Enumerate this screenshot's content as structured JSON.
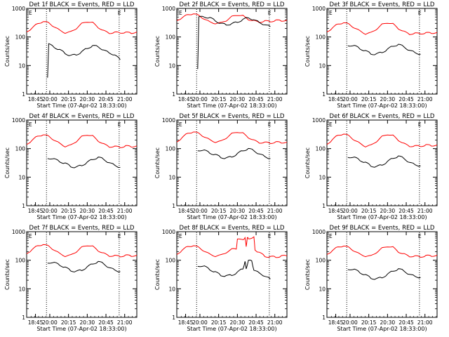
{
  "figure": {
    "background": "#ffffff",
    "events_color": "#000000",
    "lld_color": "#ff0000"
  },
  "chart_data": [
    {
      "type": "line",
      "title": "Det 1f BLACK = Events, RED = LLD",
      "xlabel": "Start Time (07-Apr-02 18:33:00)",
      "ylabel": "Counts/sec",
      "yscale": "log",
      "ylim": [
        1,
        1000
      ],
      "xticks": [
        "18:45",
        "20:00",
        "20:15",
        "20:30",
        "20:45",
        "21:00"
      ],
      "yticks": [
        "1",
        "10",
        "100",
        "1000"
      ],
      "markers": [
        {
          "label": "E",
          "position": "left"
        },
        {
          "label": "E",
          "position": "right"
        }
      ],
      "series": [
        {
          "name": "LLD",
          "color": "#ff0000",
          "x": [
            0,
            0.05,
            0.1,
            0.15,
            0.2,
            0.25,
            0.3,
            0.35,
            0.4,
            0.45,
            0.5,
            0.55,
            0.6,
            0.65,
            0.7,
            0.75,
            0.8,
            0.85,
            0.9,
            0.95,
            1
          ],
          "y": [
            150,
            210,
            290,
            350,
            310,
            230,
            170,
            140,
            150,
            200,
            290,
            350,
            310,
            220,
            160,
            140,
            140,
            145,
            140,
            140,
            150
          ]
        },
        {
          "name": "Events",
          "color": "#000000",
          "x": [
            0.19,
            0.2,
            0.25,
            0.3,
            0.35,
            0.4,
            0.45,
            0.5,
            0.55,
            0.6,
            0.65,
            0.7,
            0.75,
            0.8,
            0.85
          ],
          "y": [
            4,
            55,
            45,
            35,
            27,
            22,
            24,
            30,
            40,
            50,
            45,
            35,
            27,
            24,
            16
          ]
        }
      ]
    },
    {
      "type": "line",
      "title": "Det 2f BLACK = Events, RED = LLD",
      "xlabel": "Start Time (07-Apr-02 18:33:00)",
      "ylabel": "Counts/sec",
      "yscale": "log",
      "ylim": [
        1,
        1000
      ],
      "xticks": [
        "18:45",
        "20:00",
        "20:15",
        "20:30",
        "20:45",
        "21:00"
      ],
      "yticks": [
        "1",
        "10",
        "100",
        "1000"
      ],
      "markers": [
        {
          "label": "E",
          "position": "left"
        },
        {
          "label": "E",
          "position": "right"
        }
      ],
      "series": [
        {
          "name": "LLD",
          "color": "#ff0000",
          "x": [
            0,
            0.05,
            0.1,
            0.15,
            0.2,
            0.25,
            0.3,
            0.35,
            0.4,
            0.45,
            0.5,
            0.55,
            0.6,
            0.65,
            0.7,
            0.75,
            0.8,
            0.85,
            0.9,
            0.95,
            1
          ],
          "y": [
            380,
            480,
            600,
            660,
            560,
            430,
            330,
            300,
            310,
            380,
            510,
            600,
            540,
            420,
            360,
            340,
            350,
            360,
            370,
            380,
            390
          ]
        },
        {
          "name": "Events",
          "color": "#000000",
          "x": [
            0.19,
            0.2,
            0.25,
            0.3,
            0.35,
            0.4,
            0.45,
            0.5,
            0.55,
            0.6,
            0.65,
            0.7,
            0.75,
            0.8,
            0.85
          ],
          "y": [
            8,
            480,
            520,
            460,
            380,
            290,
            270,
            290,
            330,
            410,
            470,
            400,
            320,
            270,
            230
          ]
        }
      ]
    },
    {
      "type": "line",
      "title": "Det 3f BLACK = Events, RED = LLD",
      "xlabel": "Start Time (07-Apr-02 18:33:00)",
      "ylabel": "Counts/sec",
      "yscale": "log",
      "ylim": [
        1,
        1000
      ],
      "xticks": [
        "18:45",
        "20:00",
        "20:15",
        "20:30",
        "20:45",
        "21:00"
      ],
      "yticks": [
        "1",
        "10",
        "100",
        "1000"
      ],
      "markers": [
        {
          "label": "E",
          "position": "left"
        },
        {
          "label": "E",
          "position": "right"
        }
      ],
      "series": [
        {
          "name": "LLD",
          "color": "#ff0000",
          "x": [
            0,
            0.05,
            0.1,
            0.15,
            0.2,
            0.25,
            0.3,
            0.35,
            0.4,
            0.45,
            0.5,
            0.55,
            0.6,
            0.65,
            0.7,
            0.75,
            0.8,
            0.85,
            0.9,
            0.95,
            1
          ],
          "y": [
            150,
            210,
            280,
            320,
            280,
            210,
            160,
            130,
            140,
            190,
            270,
            320,
            280,
            200,
            150,
            130,
            130,
            135,
            135,
            140,
            145
          ]
        },
        {
          "name": "Events",
          "color": "#000000",
          "x": [
            0.19,
            0.25,
            0.3,
            0.35,
            0.4,
            0.45,
            0.5,
            0.55,
            0.6,
            0.65,
            0.7,
            0.75,
            0.8,
            0.85
          ],
          "y": [
            52,
            48,
            40,
            32,
            26,
            25,
            29,
            37,
            48,
            55,
            45,
            34,
            28,
            25
          ]
        }
      ]
    },
    {
      "type": "line",
      "title": "Det 4f BLACK = Events, RED = LLD",
      "xlabel": "Start Time (07-Apr-02 18:33:00)",
      "ylabel": "Counts/sec",
      "yscale": "log",
      "ylim": [
        1,
        1000
      ],
      "xticks": [
        "18:45",
        "20:00",
        "20:15",
        "20:30",
        "20:45",
        "21:00"
      ],
      "yticks": [
        "1",
        "10",
        "100",
        "1000"
      ],
      "markers": [
        {
          "label": "E",
          "position": "left"
        },
        {
          "label": "E",
          "position": "right"
        }
      ],
      "series": [
        {
          "name": "LLD",
          "color": "#ff0000",
          "x": [
            0,
            0.05,
            0.1,
            0.15,
            0.2,
            0.25,
            0.3,
            0.35,
            0.4,
            0.45,
            0.5,
            0.55,
            0.6,
            0.65,
            0.7,
            0.75,
            0.8,
            0.85,
            0.9,
            0.95,
            1
          ],
          "y": [
            140,
            200,
            270,
            310,
            270,
            200,
            150,
            120,
            130,
            180,
            260,
            310,
            270,
            190,
            140,
            120,
            115,
            115,
            120,
            120,
            125
          ]
        },
        {
          "name": "Events",
          "color": "#000000",
          "x": [
            0.19,
            0.25,
            0.3,
            0.35,
            0.4,
            0.45,
            0.5,
            0.55,
            0.6,
            0.65,
            0.7,
            0.75,
            0.8,
            0.85
          ],
          "y": [
            48,
            42,
            36,
            30,
            24,
            22,
            26,
            33,
            42,
            50,
            42,
            32,
            26,
            22
          ]
        }
      ]
    },
    {
      "type": "line",
      "title": "Det 5f BLACK = Events, RED = LLD",
      "xlabel": "Start Time (07-Apr-02 18:33:00)",
      "ylabel": "Counts/sec",
      "yscale": "log",
      "ylim": [
        1,
        1000
      ],
      "xticks": [
        "18:45",
        "20:00",
        "20:15",
        "20:30",
        "20:45",
        "21:00"
      ],
      "yticks": [
        "1",
        "10",
        "100",
        "1000"
      ],
      "markers": [
        {
          "label": "E",
          "position": "left"
        },
        {
          "label": "E",
          "position": "right"
        }
      ],
      "series": [
        {
          "name": "LLD",
          "color": "#ff0000",
          "x": [
            0,
            0.05,
            0.1,
            0.15,
            0.2,
            0.25,
            0.3,
            0.35,
            0.4,
            0.45,
            0.5,
            0.55,
            0.6,
            0.65,
            0.7,
            0.75,
            0.8,
            0.85,
            0.9,
            0.95,
            1
          ],
          "y": [
            170,
            250,
            340,
            390,
            340,
            260,
            200,
            170,
            180,
            240,
            330,
            390,
            340,
            250,
            190,
            165,
            160,
            160,
            165,
            165,
            170
          ]
        },
        {
          "name": "Events",
          "color": "#000000",
          "x": [
            0.19,
            0.25,
            0.3,
            0.35,
            0.4,
            0.45,
            0.5,
            0.55,
            0.6,
            0.65,
            0.7,
            0.75,
            0.8,
            0.85
          ],
          "y": [
            90,
            85,
            72,
            60,
            50,
            46,
            52,
            66,
            85,
            100,
            85,
            65,
            52,
            45
          ]
        }
      ]
    },
    {
      "type": "line",
      "title": "Det 6f BLACK = Events, RED = LLD",
      "xlabel": "Start Time (07-Apr-02 18:33:00)",
      "ylabel": "Counts/sec",
      "yscale": "log",
      "ylim": [
        1,
        1000
      ],
      "xticks": [
        "18:45",
        "20:00",
        "20:15",
        "20:30",
        "20:45",
        "21:00"
      ],
      "yticks": [
        "1",
        "10",
        "100",
        "1000"
      ],
      "markers": [
        {
          "label": "E",
          "position": "left"
        },
        {
          "label": "E",
          "position": "right"
        }
      ],
      "series": [
        {
          "name": "LLD",
          "color": "#ff0000",
          "x": [
            0,
            0.05,
            0.1,
            0.15,
            0.2,
            0.25,
            0.3,
            0.35,
            0.4,
            0.45,
            0.5,
            0.55,
            0.6,
            0.65,
            0.7,
            0.75,
            0.8,
            0.85,
            0.9,
            0.95,
            1
          ],
          "y": [
            140,
            210,
            290,
            330,
            280,
            200,
            150,
            120,
            130,
            180,
            260,
            320,
            280,
            200,
            145,
            125,
            120,
            125,
            130,
            130,
            135
          ]
        },
        {
          "name": "Events",
          "color": "#000000",
          "x": [
            0.19,
            0.25,
            0.3,
            0.35,
            0.4,
            0.45,
            0.5,
            0.55,
            0.6,
            0.65,
            0.7,
            0.75,
            0.8,
            0.85
          ],
          "y": [
            52,
            48,
            40,
            32,
            25,
            23,
            27,
            35,
            46,
            55,
            45,
            33,
            27,
            25
          ]
        }
      ]
    },
    {
      "type": "line",
      "title": "Det 7f BLACK = Events, RED = LLD",
      "xlabel": "Start Time (07-Apr-02 18:33:00)",
      "ylabel": "Counts/sec",
      "yscale": "log",
      "ylim": [
        1,
        1000
      ],
      "xticks": [
        "18:45",
        "20:00",
        "20:15",
        "20:30",
        "20:45",
        "21:00"
      ],
      "yticks": [
        "1",
        "10",
        "100",
        "1000"
      ],
      "markers": [
        {
          "label": "E",
          "position": "left"
        },
        {
          "label": "E",
          "position": "right"
        }
      ],
      "series": [
        {
          "name": "LLD",
          "color": "#ff0000",
          "x": [
            0,
            0.05,
            0.1,
            0.15,
            0.2,
            0.25,
            0.3,
            0.35,
            0.4,
            0.45,
            0.5,
            0.55,
            0.6,
            0.65,
            0.7,
            0.75,
            0.8,
            0.85,
            0.9,
            0.95,
            1
          ],
          "y": [
            170,
            240,
            320,
            360,
            310,
            230,
            170,
            140,
            150,
            200,
            280,
            340,
            300,
            220,
            170,
            145,
            140,
            140,
            145,
            145,
            150
          ]
        },
        {
          "name": "Events",
          "color": "#000000",
          "x": [
            0.19,
            0.25,
            0.3,
            0.35,
            0.4,
            0.45,
            0.5,
            0.55,
            0.6,
            0.65,
            0.7,
            0.75,
            0.8,
            0.85
          ],
          "y": [
            85,
            80,
            70,
            55,
            44,
            40,
            45,
            58,
            75,
            90,
            75,
            55,
            45,
            40
          ]
        }
      ]
    },
    {
      "type": "line",
      "title": "Det 8f BLACK = Events, RED = LLD",
      "xlabel": "Start Time (07-Apr-02 18:33:00)",
      "ylabel": "Counts/sec",
      "yscale": "log",
      "ylim": [
        1,
        1000
      ],
      "xticks": [
        "18:45",
        "20:00",
        "20:15",
        "20:30",
        "20:45",
        "21:00"
      ],
      "yticks": [
        "1",
        "10",
        "100",
        "1000"
      ],
      "markers": [
        {
          "label": "E",
          "position": "left"
        },
        {
          "label": "E",
          "position": "right"
        }
      ],
      "series": [
        {
          "name": "LLD",
          "color": "#ff0000",
          "x": [
            0,
            0.05,
            0.1,
            0.15,
            0.2,
            0.25,
            0.3,
            0.35,
            0.4,
            0.45,
            0.5,
            0.54,
            0.55,
            0.6,
            0.62,
            0.63,
            0.64,
            0.65,
            0.7,
            0.71,
            0.75,
            0.8,
            0.85,
            0.9,
            0.95,
            1
          ],
          "y": [
            160,
            230,
            300,
            330,
            280,
            210,
            160,
            140,
            150,
            190,
            240,
            260,
            520,
            560,
            580,
            320,
            580,
            600,
            620,
            240,
            180,
            140,
            130,
            130,
            140,
            140
          ]
        },
        {
          "name": "Events",
          "color": "#000000",
          "x": [
            0.19,
            0.25,
            0.3,
            0.35,
            0.4,
            0.45,
            0.5,
            0.55,
            0.6,
            0.62,
            0.63,
            0.65,
            0.68,
            0.7,
            0.75,
            0.8,
            0.85
          ],
          "y": [
            65,
            60,
            48,
            38,
            30,
            28,
            30,
            38,
            50,
            90,
            50,
            100,
            95,
            45,
            35,
            28,
            22
          ]
        }
      ]
    },
    {
      "type": "line",
      "title": "Det 9f BLACK = Events, RED = LLD",
      "xlabel": "Start Time (07-Apr-02 18:33:00)",
      "ylabel": "Counts/sec",
      "yscale": "log",
      "ylim": [
        1,
        1000
      ],
      "xticks": [
        "18:45",
        "20:00",
        "20:15",
        "20:30",
        "20:45",
        "21:00"
      ],
      "yticks": [
        "1",
        "10",
        "100",
        "1000"
      ],
      "markers": [
        {
          "label": "E",
          "position": "left"
        },
        {
          "label": "E",
          "position": "right"
        }
      ],
      "series": [
        {
          "name": "LLD",
          "color": "#ff0000",
          "x": [
            0,
            0.05,
            0.1,
            0.15,
            0.2,
            0.25,
            0.3,
            0.35,
            0.4,
            0.45,
            0.5,
            0.55,
            0.6,
            0.65,
            0.7,
            0.75,
            0.8,
            0.85,
            0.9,
            0.95,
            1
          ],
          "y": [
            160,
            220,
            290,
            320,
            280,
            210,
            160,
            140,
            140,
            190,
            260,
            310,
            280,
            200,
            160,
            140,
            135,
            135,
            140,
            145,
            150
          ]
        },
        {
          "name": "Events",
          "color": "#000000",
          "x": [
            0.19,
            0.25,
            0.3,
            0.35,
            0.4,
            0.45,
            0.5,
            0.55,
            0.6,
            0.65,
            0.7,
            0.75,
            0.8,
            0.85
          ],
          "y": [
            50,
            46,
            38,
            30,
            24,
            22,
            25,
            32,
            42,
            50,
            42,
            32,
            27,
            25
          ]
        }
      ]
    }
  ]
}
